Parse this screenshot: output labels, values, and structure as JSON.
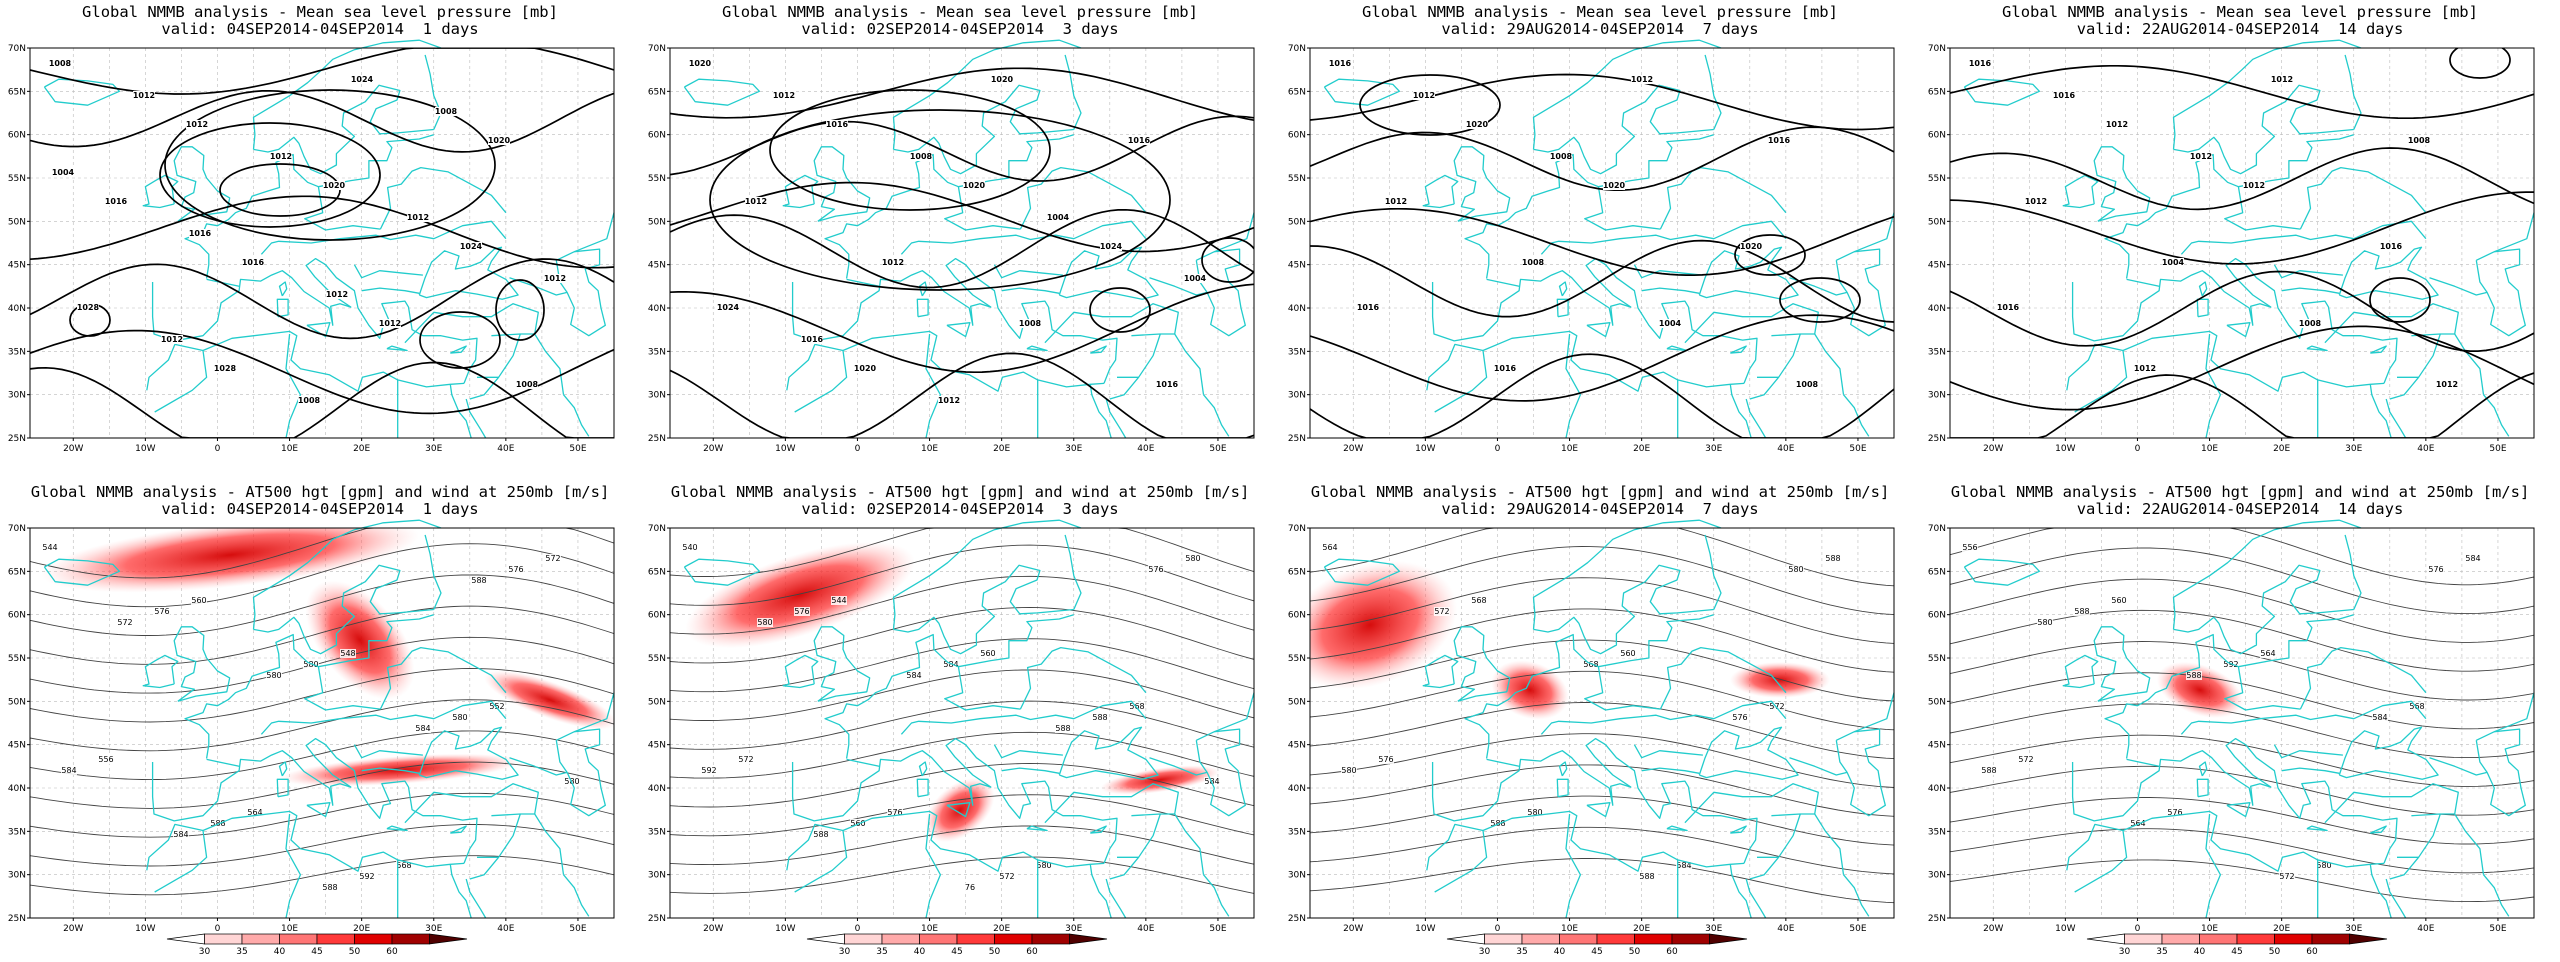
{
  "row1_title": "Global NMMB analysis - Mean sea level pressure [mb]",
  "row2_title": "Global NMMB analysis - AT500 hgt [gpm] and wind at 250mb [m/s]",
  "periods": [
    {
      "valid": "valid: 04SEP2014-04SEP2014  1 days"
    },
    {
      "valid": "valid: 02SEP2014-04SEP2014  3 days"
    },
    {
      "valid": "valid: 29AUG2014-04SEP2014  7 days"
    },
    {
      "valid": "valid: 22AUG2014-04SEP2014  14 days"
    }
  ],
  "lat_ticks": [
    "70N",
    "65N",
    "60N",
    "55N",
    "50N",
    "45N",
    "40N",
    "35N",
    "30N",
    "25N"
  ],
  "lon_ticks": [
    "20W",
    "10W",
    "0",
    "10E",
    "20E",
    "30E",
    "40E",
    "50E"
  ],
  "colorbar": {
    "labels": [
      "30",
      "35",
      "40",
      "45",
      "50",
      "60"
    ],
    "colors": [
      "#ffffff",
      "#ffd5d5",
      "#ffaaaa",
      "#ff7575",
      "#ff3a3a",
      "#e00000",
      "#a00000",
      "#500000"
    ]
  },
  "colors": {
    "coast": "#22cccc",
    "contour": "#000000",
    "grid": "#bbbbbb",
    "wind": "#ff0000"
  },
  "mslp_labels": [
    [
      "1008",
      "1012",
      "1020",
      "1024",
      "1028",
      "1028",
      "1024",
      "1020",
      "1016",
      "1016",
      "1012",
      "1008",
      "1012",
      "1012",
      "1012",
      "1012",
      "1012",
      "1008",
      "1008",
      "1004",
      "1016",
      "1012"
    ],
    [
      "1020",
      "1016",
      "1020",
      "1024",
      "1024",
      "1020",
      "1020",
      "1016",
      "1012",
      "1012",
      "1008",
      "1016",
      "1012",
      "1008",
      "1004",
      "1004",
      "1016",
      "1012"
    ],
    [
      "1016",
      "1020",
      "1020",
      "1020",
      "1016",
      "1016",
      "1012",
      "1016",
      "1012",
      "1008",
      "1004",
      "1008",
      "1012",
      "1008"
    ],
    [
      "1016",
      "1012",
      "1012",
      "1016",
      "1016",
      "1012",
      "1012",
      "1008",
      "1012",
      "1004",
      "1008",
      "1012",
      "1016",
      "1012"
    ]
  ],
  "hgt_labels": [
    [
      "544",
      "560",
      "548",
      "552",
      "556",
      "564",
      "568",
      "572",
      "576",
      "580",
      "580",
      "584",
      "588",
      "592",
      "576",
      "572",
      "580",
      "584",
      "580",
      "584",
      "588",
      "588"
    ],
    [
      "540",
      "544",
      "560",
      "568",
      "572",
      "576",
      "580",
      "580",
      "576",
      "584",
      "588",
      "592",
      "560",
      "572",
      "576",
      "580",
      "584",
      "588",
      "584",
      "588",
      "76"
    ],
    [
      "564",
      "568",
      "560",
      "572",
      "576",
      "580",
      "584",
      "588",
      "572",
      "568",
      "576",
      "580",
      "588",
      "588",
      "580"
    ],
    [
      "556",
      "560",
      "564",
      "568",
      "572",
      "576",
      "580",
      "584",
      "588",
      "592",
      "584",
      "588",
      "564",
      "572",
      "576",
      "580",
      "588"
    ]
  ]
}
